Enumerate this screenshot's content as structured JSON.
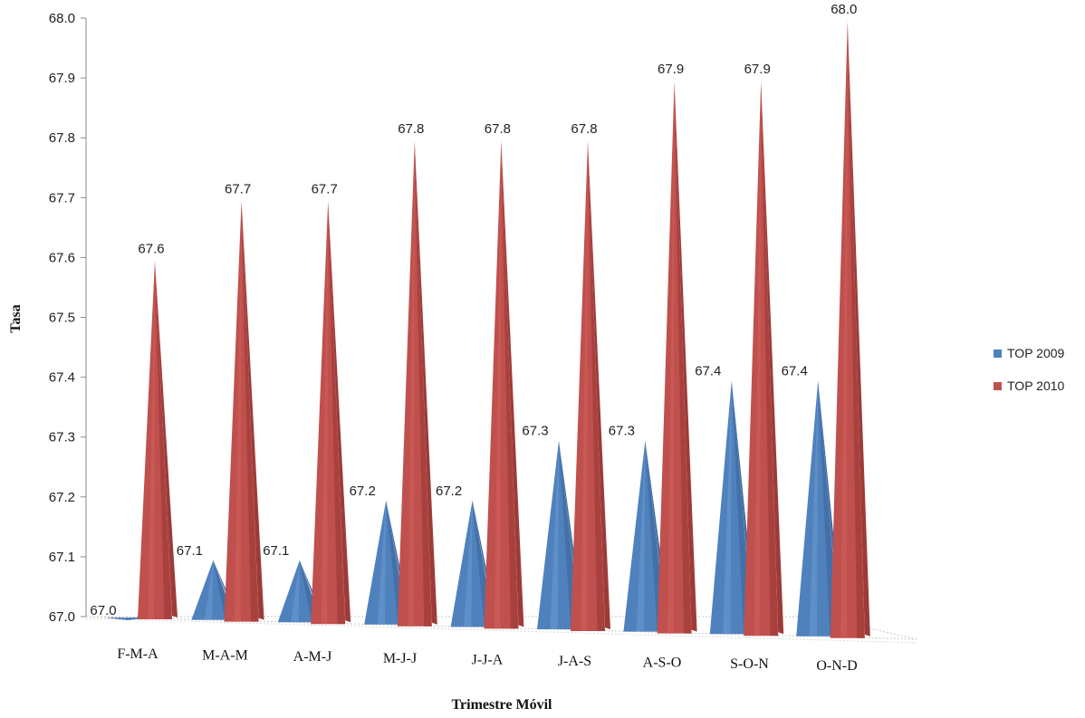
{
  "chart_data": {
    "type": "bar",
    "style": "3d-cone",
    "categories": [
      "F-M-A",
      "M-A-M",
      "A-M-J",
      "M-J-J",
      "J-J-A",
      "J-A-S",
      "A-S-O",
      "S-O-N",
      "O-N-D"
    ],
    "series": [
      {
        "name": "TOP 2009",
        "color": "#4f81bd",
        "values": [
          67.0,
          67.1,
          67.1,
          67.2,
          67.2,
          67.3,
          67.3,
          67.4,
          67.4
        ]
      },
      {
        "name": "TOP 2010",
        "color": "#c0504d",
        "values": [
          67.6,
          67.7,
          67.7,
          67.8,
          67.8,
          67.8,
          67.9,
          67.9,
          68.0
        ]
      }
    ],
    "xlabel": "Trimestre Móvil",
    "ylabel": "Tasa",
    "ylim": [
      67.0,
      68.0
    ],
    "yticks": [
      "67.0",
      "67.1",
      "67.2",
      "67.3",
      "67.4",
      "67.5",
      "67.6",
      "67.7",
      "67.8",
      "67.9",
      "68.0"
    ],
    "legend_position": "right"
  }
}
